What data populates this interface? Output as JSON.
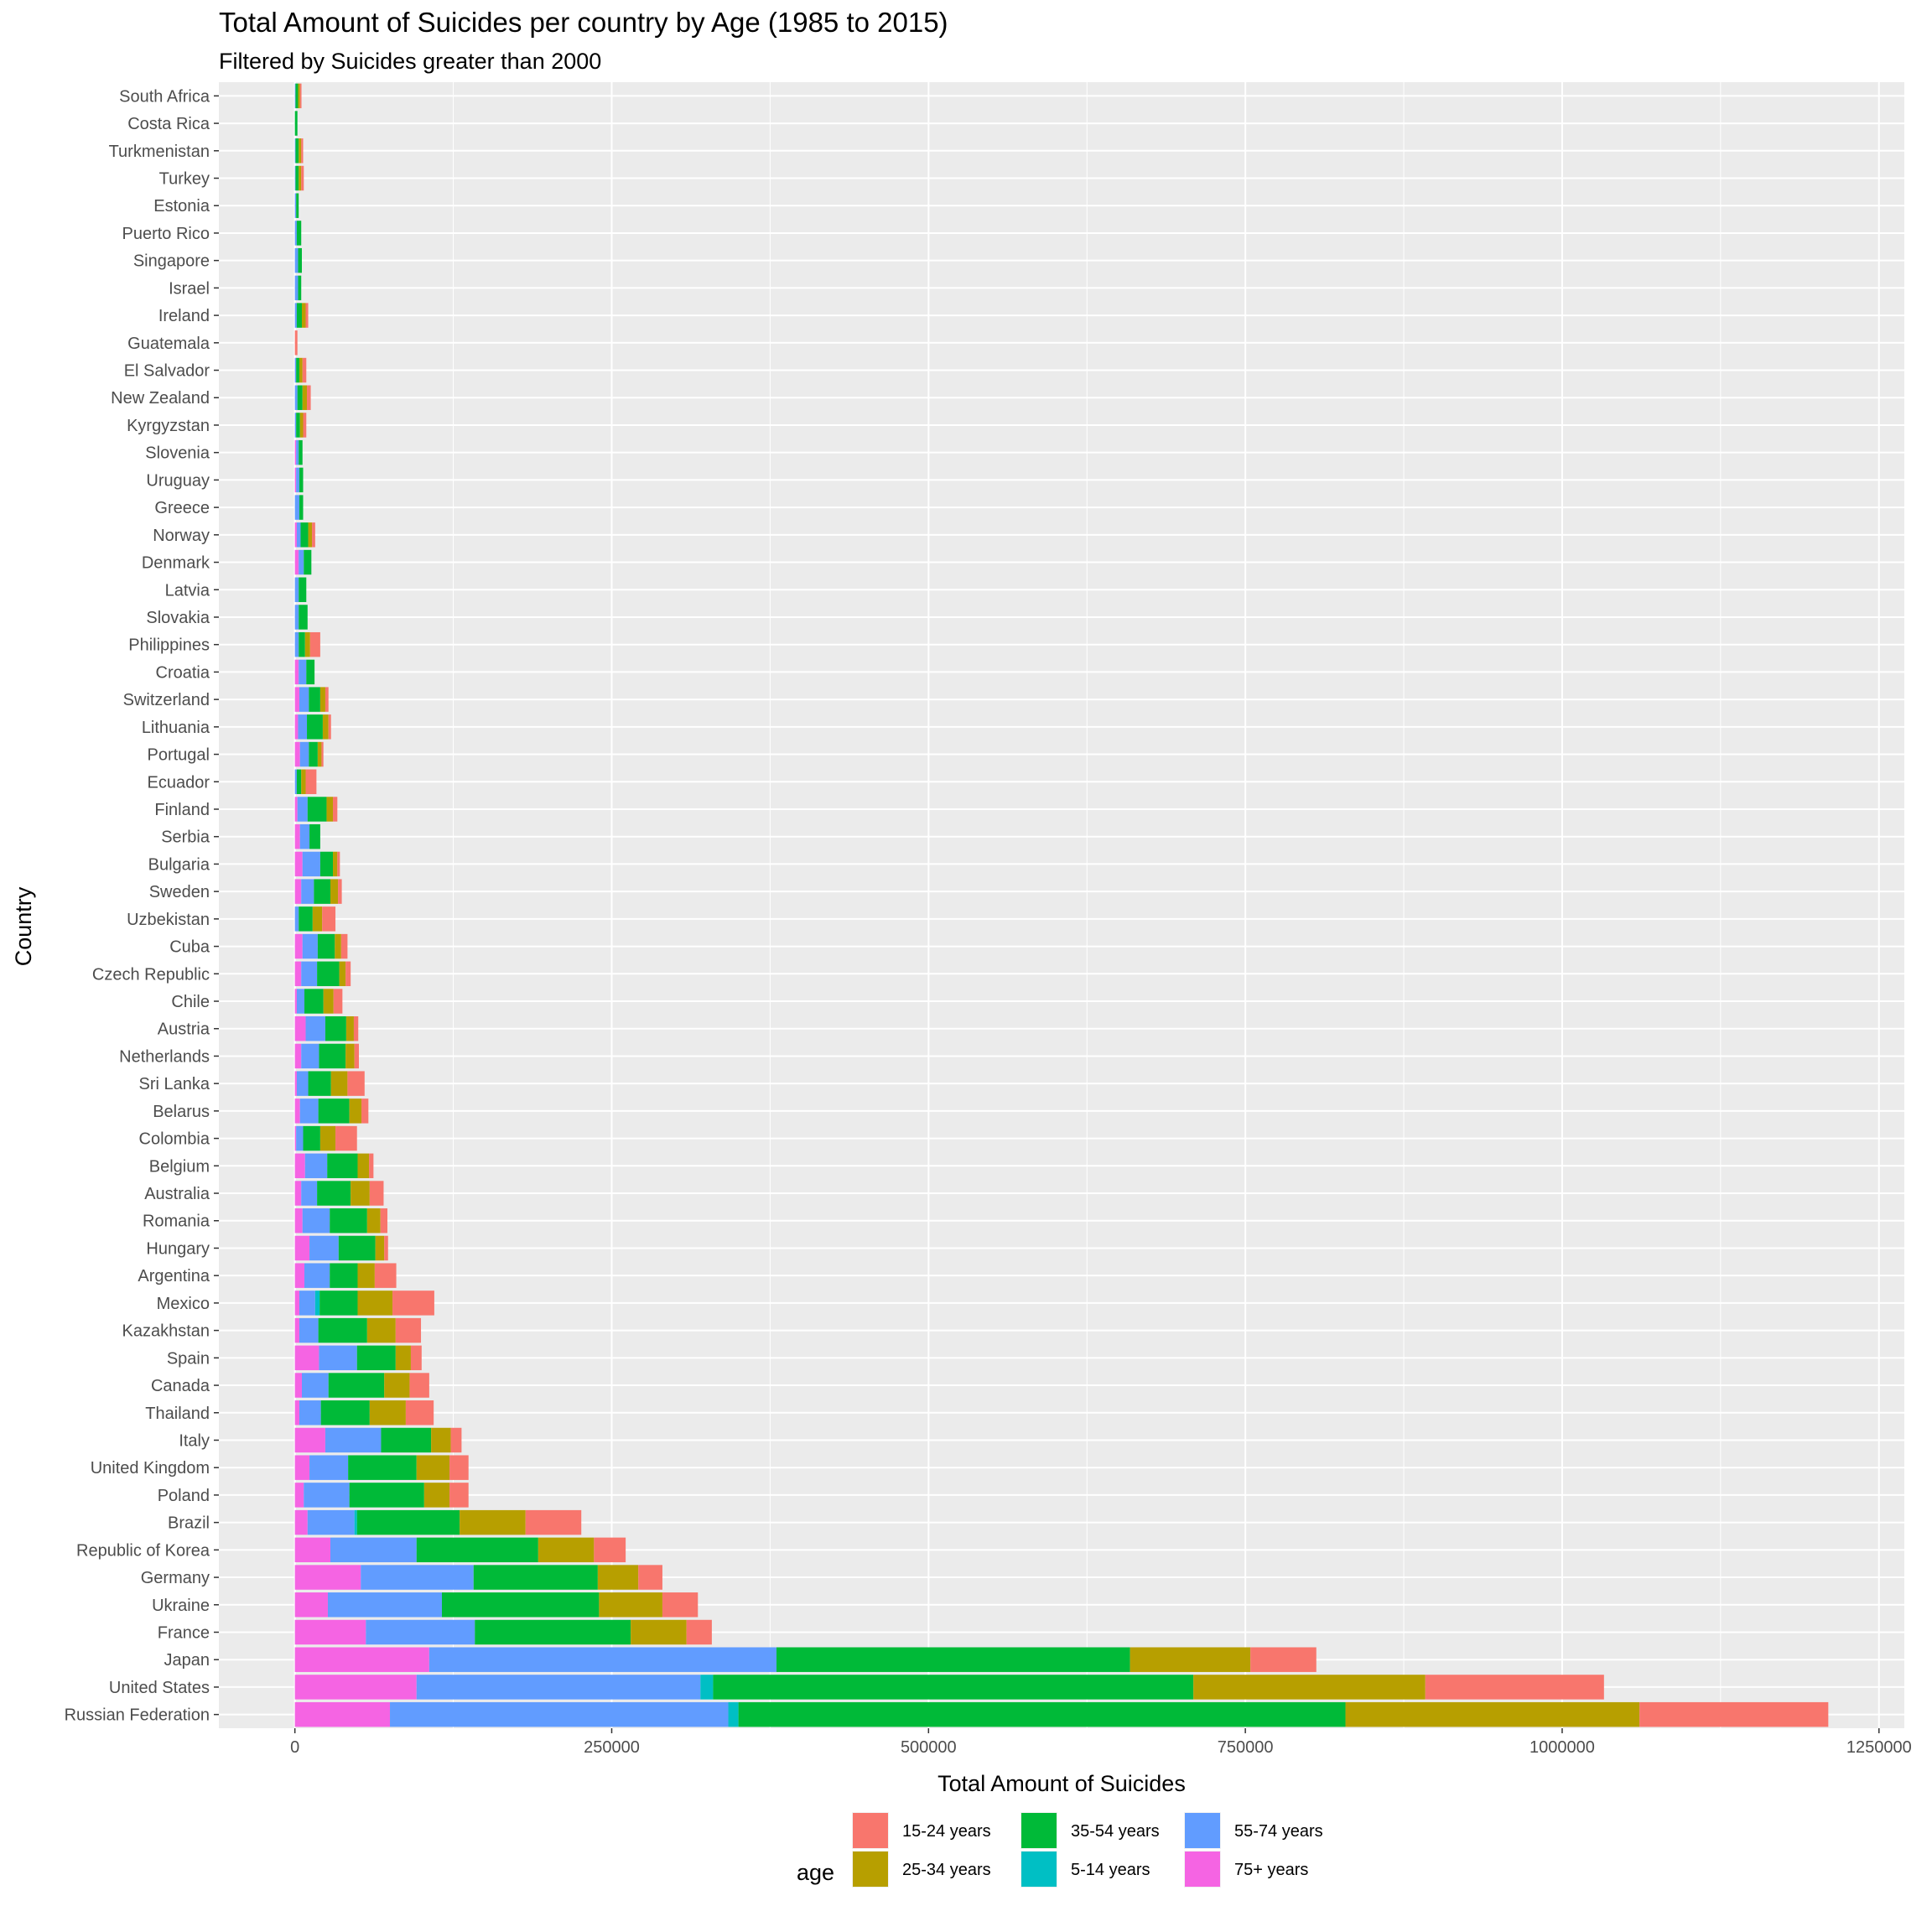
{
  "chart_data": {
    "type": "bar",
    "orientation": "horizontal",
    "stacked": true,
    "title": "Total Amount of Suicides per country by Age (1985 to 2015)",
    "subtitle": "Filtered by Suicides greater than 2000",
    "xlabel": "Total Amount of Suicides",
    "ylabel": "Country",
    "xlim": [
      -60000,
      1270000
    ],
    "x_ticks": [
      0,
      250000,
      500000,
      750000,
      1000000,
      1250000
    ],
    "x_tick_labels": [
      "0",
      "250000",
      "500000",
      "750000",
      "1000000",
      "1250000"
    ],
    "grid": true,
    "legend": {
      "title": "age",
      "position": "bottom"
    },
    "stack_order": [
      "75+ years",
      "55-74 years",
      "5-14 years",
      "35-54 years",
      "25-34 years",
      "15-24 years"
    ],
    "series": [
      {
        "name": "15-24 years",
        "color": "#F8766D"
      },
      {
        "name": "25-34 years",
        "color": "#B79F00"
      },
      {
        "name": "35-54 years",
        "color": "#00BA38"
      },
      {
        "name": "5-14 years",
        "color": "#00BFC4"
      },
      {
        "name": "55-74 years",
        "color": "#619CFF"
      },
      {
        "name": "75+ years",
        "color": "#F564E3"
      }
    ],
    "categories": [
      "South Africa",
      "Costa Rica",
      "Turkmenistan",
      "Turkey",
      "Estonia",
      "Puerto Rico",
      "Singapore",
      "Israel",
      "Ireland",
      "Guatemala",
      "El Salvador",
      "New Zealand",
      "Kyrgyzstan",
      "Slovenia",
      "Uruguay",
      "Greece",
      "Norway",
      "Denmark",
      "Latvia",
      "Slovakia",
      "Philippines",
      "Croatia",
      "Switzerland",
      "Lithuania",
      "Portugal",
      "Ecuador",
      "Finland",
      "Serbia",
      "Bulgaria",
      "Sweden",
      "Uzbekistan",
      "Cuba",
      "Czech Republic",
      "Chile",
      "Austria",
      "Netherlands",
      "Sri Lanka",
      "Belarus",
      "Colombia",
      "Belgium",
      "Australia",
      "Romania",
      "Hungary",
      "Argentina",
      "Mexico",
      "Kazakhstan",
      "Spain",
      "Canada",
      "Thailand",
      "Italy",
      "United Kingdom",
      "Poland",
      "Brazil",
      "Republic of Korea",
      "Germany",
      "Ukraine",
      "France",
      "Japan",
      "United States",
      "Russian Federation"
    ],
    "values": {
      "South Africa": {
        "75+ years": 0,
        "55-74 years": 500,
        "5-14 years": 0,
        "35-54 years": 2000,
        "25-34 years": 1500,
        "15-24 years": 1200
      },
      "Costa Rica": {
        "75+ years": 0,
        "55-74 years": 0,
        "5-14 years": 0,
        "35-54 years": 2000,
        "25-34 years": 0,
        "15-24 years": 0
      },
      "Turkmenistan": {
        "75+ years": 0,
        "55-74 years": 500,
        "5-14 years": 0,
        "35-54 years": 2500,
        "25-34 years": 2000,
        "15-24 years": 1500
      },
      "Turkey": {
        "75+ years": 0,
        "55-74 years": 500,
        "5-14 years": 0,
        "35-54 years": 2500,
        "25-34 years": 2000,
        "15-24 years": 2000
      },
      "Estonia": {
        "75+ years": 0,
        "55-74 years": 1000,
        "5-14 years": 0,
        "35-54 years": 2000,
        "25-34 years": 0,
        "15-24 years": 0
      },
      "Puerto Rico": {
        "75+ years": 0,
        "55-74 years": 1500,
        "5-14 years": 0,
        "35-54 years": 3500,
        "25-34 years": 0,
        "15-24 years": 0
      },
      "Singapore": {
        "75+ years": 0,
        "55-74 years": 2500,
        "5-14 years": 0,
        "35-54 years": 3000,
        "25-34 years": 0,
        "15-24 years": 0
      },
      "Israel": {
        "75+ years": 0,
        "55-74 years": 2500,
        "5-14 years": 0,
        "35-54 years": 2500,
        "25-34 years": 0,
        "15-24 years": 0
      },
      "Ireland": {
        "75+ years": 0,
        "55-74 years": 1500,
        "5-14 years": 0,
        "35-54 years": 4000,
        "25-34 years": 3000,
        "15-24 years": 2000
      },
      "Guatemala": {
        "75+ years": 0,
        "55-74 years": 0,
        "5-14 years": 0,
        "35-54 years": 0,
        "25-34 years": 0,
        "15-24 years": 2000
      },
      "El Salvador": {
        "75+ years": 0,
        "55-74 years": 1000,
        "5-14 years": 0,
        "35-54 years": 2500,
        "25-34 years": 2500,
        "15-24 years": 3000
      },
      "New Zealand": {
        "75+ years": 0,
        "55-74 years": 2000,
        "5-14 years": 0,
        "35-54 years": 4000,
        "25-34 years": 3500,
        "15-24 years": 3000
      },
      "Kyrgyzstan": {
        "75+ years": 0,
        "55-74 years": 1000,
        "5-14 years": 0,
        "35-54 years": 3000,
        "25-34 years": 2500,
        "15-24 years": 2500
      },
      "Slovenia": {
        "75+ years": 1000,
        "55-74 years": 2000,
        "5-14 years": 0,
        "35-54 years": 3000,
        "25-34 years": 0,
        "15-24 years": 0
      },
      "Uruguay": {
        "75+ years": 1000,
        "55-74 years": 2500,
        "5-14 years": 0,
        "35-54 years": 3000,
        "25-34 years": 0,
        "15-24 years": 0
      },
      "Greece": {
        "75+ years": 0,
        "55-74 years": 3500,
        "5-14 years": 0,
        "35-54 years": 3000,
        "25-34 years": 0,
        "15-24 years": 0
      },
      "Norway": {
        "75+ years": 1500,
        "55-74 years": 3000,
        "5-14 years": 0,
        "35-54 years": 6000,
        "25-34 years": 3000,
        "15-24 years": 2500
      },
      "Denmark": {
        "75+ years": 3000,
        "55-74 years": 4000,
        "5-14 years": 0,
        "35-54 years": 6000,
        "25-34 years": 0,
        "15-24 years": 0
      },
      "Latvia": {
        "75+ years": 0,
        "55-74 years": 3000,
        "5-14 years": 0,
        "35-54 years": 6000,
        "25-34 years": 0,
        "15-24 years": 0
      },
      "Slovakia": {
        "75+ years": 0,
        "55-74 years": 3000,
        "5-14 years": 0,
        "35-54 years": 7000,
        "25-34 years": 0,
        "15-24 years": 0
      },
      "Philippines": {
        "75+ years": 0,
        "55-74 years": 3000,
        "5-14 years": 0,
        "35-54 years": 5000,
        "25-34 years": 4000,
        "15-24 years": 8000
      },
      "Croatia": {
        "75+ years": 3000,
        "55-74 years": 6000,
        "5-14 years": 0,
        "35-54 years": 6500,
        "25-34 years": 0,
        "15-24 years": 0
      },
      "Switzerland": {
        "75+ years": 3500,
        "55-74 years": 7500,
        "5-14 years": 0,
        "35-54 years": 9000,
        "25-34 years": 4000,
        "15-24 years": 2500
      },
      "Lithuania": {
        "75+ years": 2500,
        "55-74 years": 7000,
        "5-14 years": 0,
        "35-54 years": 12500,
        "25-34 years": 4500,
        "15-24 years": 2000
      },
      "Portugal": {
        "75+ years": 4000,
        "55-74 years": 7000,
        "5-14 years": 0,
        "35-54 years": 7000,
        "25-34 years": 3000,
        "15-24 years": 1500
      },
      "Ecuador": {
        "75+ years": 0,
        "55-74 years": 1500,
        "5-14 years": 0,
        "35-54 years": 3500,
        "25-34 years": 3500,
        "15-24 years": 8500
      },
      "Finland": {
        "75+ years": 2000,
        "55-74 years": 8000,
        "5-14 years": 0,
        "35-54 years": 15000,
        "25-34 years": 5000,
        "15-24 years": 3500
      },
      "Serbia": {
        "75+ years": 4000,
        "55-74 years": 7500,
        "5-14 years": 0,
        "35-54 years": 8500,
        "25-34 years": 0,
        "15-24 years": 0
      },
      "Bulgaria": {
        "75+ years": 6000,
        "55-74 years": 14000,
        "5-14 years": 0,
        "35-54 years": 10000,
        "25-34 years": 3500,
        "15-24 years": 2000
      },
      "Sweden": {
        "75+ years": 5000,
        "55-74 years": 10000,
        "5-14 years": 0,
        "35-54 years": 13000,
        "25-34 years": 6000,
        "15-24 years": 3000
      },
      "Uzbekistan": {
        "75+ years": 0,
        "55-74 years": 3000,
        "5-14 years": 0,
        "35-54 years": 11000,
        "25-34 years": 7500,
        "15-24 years": 10500
      },
      "Cuba": {
        "75+ years": 6000,
        "55-74 years": 12000,
        "5-14 years": 0,
        "35-54 years": 13500,
        "25-34 years": 5000,
        "15-24 years": 5000
      },
      "Czech Republic": {
        "75+ years": 5000,
        "55-74 years": 12500,
        "5-14 years": 0,
        "35-54 years": 17500,
        "25-34 years": 5000,
        "15-24 years": 4000
      },
      "Chile": {
        "75+ years": 1500,
        "55-74 years": 6000,
        "5-14 years": 0,
        "35-54 years": 15000,
        "25-34 years": 8000,
        "15-24 years": 7000
      },
      "Austria": {
        "75+ years": 8500,
        "55-74 years": 15500,
        "5-14 years": 0,
        "35-54 years": 16500,
        "25-34 years": 6000,
        "15-24 years": 3500
      },
      "Netherlands": {
        "75+ years": 5000,
        "55-74 years": 14000,
        "5-14 years": 0,
        "35-54 years": 21000,
        "25-34 years": 7000,
        "15-24 years": 3500
      },
      "Sri Lanka": {
        "75+ years": 1500,
        "55-74 years": 9000,
        "5-14 years": 0,
        "35-54 years": 18000,
        "25-34 years": 13000,
        "15-24 years": 13500
      },
      "Belarus": {
        "75+ years": 4000,
        "55-74 years": 14500,
        "5-14 years": 0,
        "35-54 years": 24500,
        "25-34 years": 9500,
        "15-24 years": 5500
      },
      "Colombia": {
        "75+ years": 1000,
        "55-74 years": 5500,
        "5-14 years": 0,
        "35-54 years": 13500,
        "25-34 years": 12000,
        "15-24 years": 17000
      },
      "Belgium": {
        "75+ years": 8000,
        "55-74 years": 17500,
        "5-14 years": 0,
        "35-54 years": 24000,
        "25-34 years": 9000,
        "15-24 years": 3500
      },
      "Australia": {
        "75+ years": 5000,
        "55-74 years": 12500,
        "5-14 years": 0,
        "35-54 years": 26500,
        "25-34 years": 15000,
        "15-24 years": 11000
      },
      "Romania": {
        "75+ years": 6000,
        "55-74 years": 21500,
        "5-14 years": 0,
        "35-54 years": 29500,
        "25-34 years": 10500,
        "15-24 years": 5500
      },
      "Hungary": {
        "75+ years": 11500,
        "55-74 years": 23000,
        "5-14 years": 0,
        "35-54 years": 29000,
        "25-34 years": 7000,
        "15-24 years": 3000
      },
      "Argentina": {
        "75+ years": 7500,
        "55-74 years": 20000,
        "5-14 years": 0,
        "35-54 years": 22000,
        "25-34 years": 13500,
        "15-24 years": 17000
      },
      "Mexico": {
        "75+ years": 3500,
        "55-74 years": 12500,
        "5-14 years": 3500,
        "35-54 years": 30000,
        "25-34 years": 27500,
        "15-24 years": 33000
      },
      "Kazakhstan": {
        "75+ years": 3500,
        "55-74 years": 15000,
        "5-14 years": 0,
        "35-54 years": 38500,
        "25-34 years": 22500,
        "15-24 years": 20000
      },
      "Spain": {
        "75+ years": 19000,
        "55-74 years": 30000,
        "5-14 years": 0,
        "35-54 years": 30500,
        "25-34 years": 12000,
        "15-24 years": 8500
      },
      "Canada": {
        "75+ years": 5500,
        "55-74 years": 21000,
        "5-14 years": 0,
        "35-54 years": 44000,
        "25-34 years": 20000,
        "15-24 years": 15500
      },
      "Thailand": {
        "75+ years": 3500,
        "55-74 years": 17000,
        "5-14 years": 0,
        "35-54 years": 38500,
        "25-34 years": 28500,
        "15-24 years": 22000
      },
      "Italy": {
        "75+ years": 24000,
        "55-74 years": 44000,
        "5-14 years": 0,
        "35-54 years": 39500,
        "25-34 years": 15500,
        "15-24 years": 8500
      },
      "United Kingdom": {
        "75+ years": 11500,
        "55-74 years": 30500,
        "5-14 years": 0,
        "35-54 years": 54000,
        "25-34 years": 26000,
        "15-24 years": 15000
      },
      "Poland": {
        "75+ years": 7000,
        "55-74 years": 36000,
        "5-14 years": 0,
        "35-54 years": 59000,
        "25-34 years": 20000,
        "15-24 years": 15000
      },
      "Brazil": {
        "75+ years": 10000,
        "55-74 years": 37000,
        "5-14 years": 2000,
        "35-54 years": 81000,
        "25-34 years": 52000,
        "15-24 years": 44000
      },
      "Republic of Korea": {
        "75+ years": 28000,
        "55-74 years": 68000,
        "5-14 years": 0,
        "35-54 years": 96000,
        "25-34 years": 44000,
        "15-24 years": 25000
      },
      "Germany": {
        "75+ years": 52000,
        "55-74 years": 89000,
        "5-14 years": 0,
        "35-54 years": 98000,
        "25-34 years": 32000,
        "15-24 years": 19000
      },
      "Ukraine": {
        "75+ years": 26000,
        "55-74 years": 90000,
        "5-14 years": 0,
        "35-54 years": 124000,
        "25-34 years": 50000,
        "15-24 years": 28000
      },
      "France": {
        "75+ years": 56000,
        "55-74 years": 86000,
        "5-14 years": 0,
        "35-54 years": 123000,
        "25-34 years": 44000,
        "15-24 years": 20000
      },
      "Japan": {
        "75+ years": 106000,
        "55-74 years": 274000,
        "5-14 years": 0,
        "35-54 years": 279000,
        "25-34 years": 95000,
        "15-24 years": 52000
      },
      "United States": {
        "75+ years": 96000,
        "55-74 years": 224000,
        "5-14 years": 10000,
        "35-54 years": 379000,
        "25-34 years": 183000,
        "15-24 years": 141000
      },
      "Russian Federation": {
        "75+ years": 75000,
        "55-74 years": 267000,
        "5-14 years": 8000,
        "35-54 years": 479000,
        "25-34 years": 232000,
        "15-24 years": 149000
      }
    }
  }
}
